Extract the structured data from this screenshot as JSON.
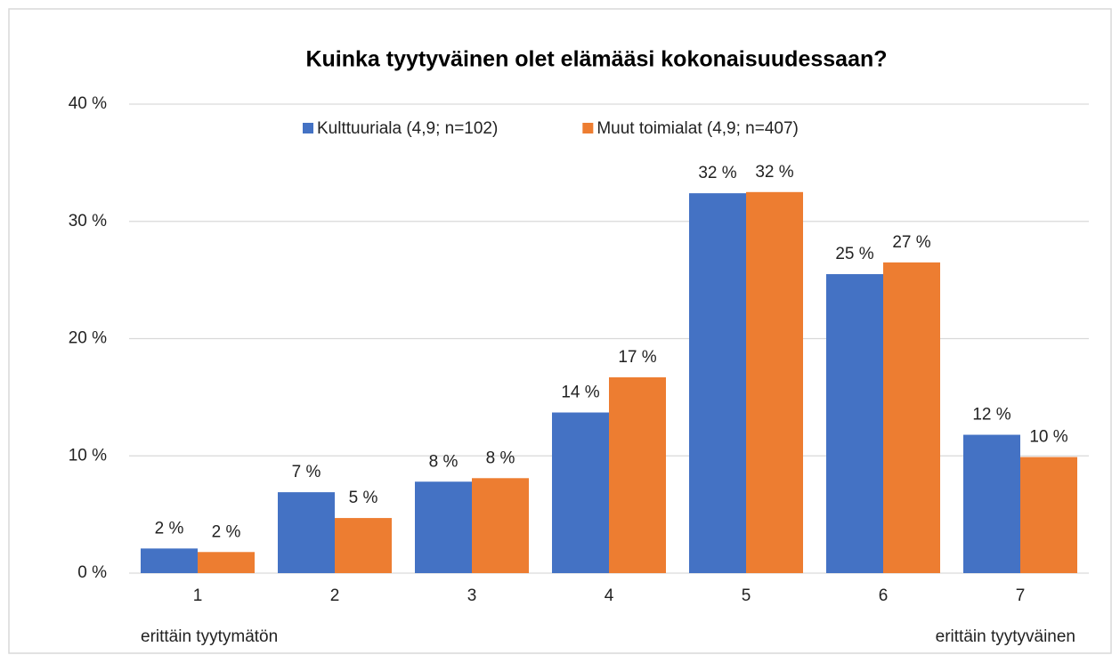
{
  "chart_data": {
    "type": "bar",
    "title": "Kuinka tyytyväinen olet elämääsi kokonaisuudessaan?",
    "categories": [
      "1",
      "2",
      "3",
      "4",
      "5",
      "6",
      "7"
    ],
    "series": [
      {
        "name": "Kulttuuriala (4,9; n=102)",
        "color": "#4472c4",
        "values": [
          2.1,
          6.9,
          7.8,
          13.7,
          32.4,
          25.5,
          11.8
        ],
        "value_labels": [
          "2 %",
          "7 %",
          "8 %",
          "14 %",
          "32 %",
          "25 %",
          "12 %"
        ]
      },
      {
        "name": "Muut toimialat (4,9; n=407)",
        "color": "#ed7d31",
        "values": [
          1.8,
          4.7,
          8.1,
          16.7,
          32.5,
          26.5,
          9.9
        ],
        "value_labels": [
          "2 %",
          "5 %",
          "8 %",
          "17 %",
          "32 %",
          "27 %",
          "10 %"
        ]
      }
    ],
    "ylim": [
      0,
      40
    ],
    "yticks": [
      {
        "value": 0,
        "label": "0 %"
      },
      {
        "value": 10,
        "label": "10 %"
      },
      {
        "value": 20,
        "label": "20 %"
      },
      {
        "value": 30,
        "label": "30 %"
      },
      {
        "value": 40,
        "label": "40 %"
      }
    ],
    "grid": true,
    "legend": "top",
    "annotations": [
      "erittäin tyytymätön",
      "erittäin tyytyväinen"
    ]
  }
}
